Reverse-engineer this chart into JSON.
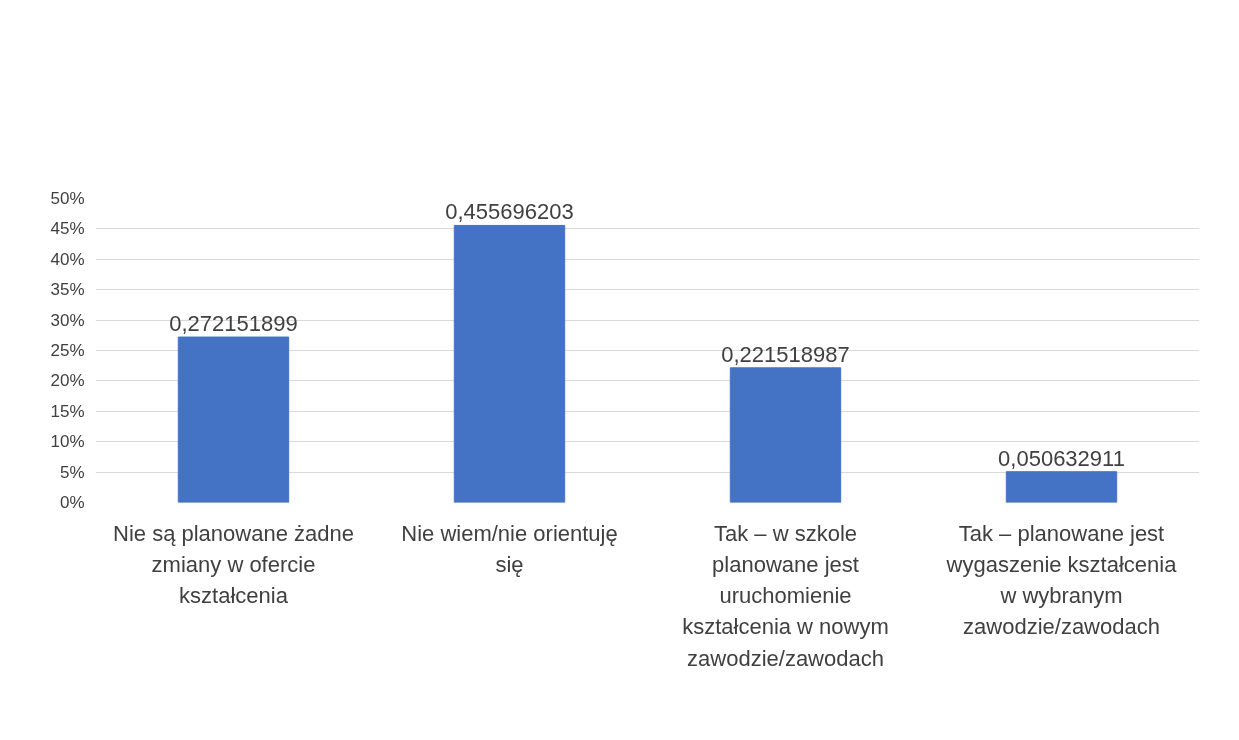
{
  "chart_data": {
    "type": "bar",
    "categories": [
      "Nie są planowane żadne zmiany w ofercie kształcenia",
      "Nie wiem/nie orientuję się",
      "Tak – w szkole planowane jest uruchomienie kształcenia w nowym zawodzie/zawodach",
      "Tak – planowane jest wygaszenie kształcenia w wybranym zawodzie/zawodach"
    ],
    "values": [
      0.272151899,
      0.455696203,
      0.221518987,
      0.050632911
    ],
    "value_labels": [
      "0,272151899",
      "0,455696203",
      "0,221518987",
      "0,050632911"
    ],
    "color": "#4472c4",
    "ylim": [
      0,
      0.5
    ],
    "yticks": [
      {
        "value": 0,
        "label": "0%"
      },
      {
        "value": 0.05,
        "label": "5%"
      },
      {
        "value": 0.1,
        "label": "10%"
      },
      {
        "value": 0.15,
        "label": "15%"
      },
      {
        "value": 0.2,
        "label": "20%"
      },
      {
        "value": 0.25,
        "label": "25%"
      },
      {
        "value": 0.3,
        "label": "30%"
      },
      {
        "value": 0.35,
        "label": "35%"
      },
      {
        "value": 0.4,
        "label": "40%"
      },
      {
        "value": 0.45,
        "label": "45%"
      },
      {
        "value": 0.5,
        "label": "50%"
      }
    ],
    "grid": "y"
  }
}
